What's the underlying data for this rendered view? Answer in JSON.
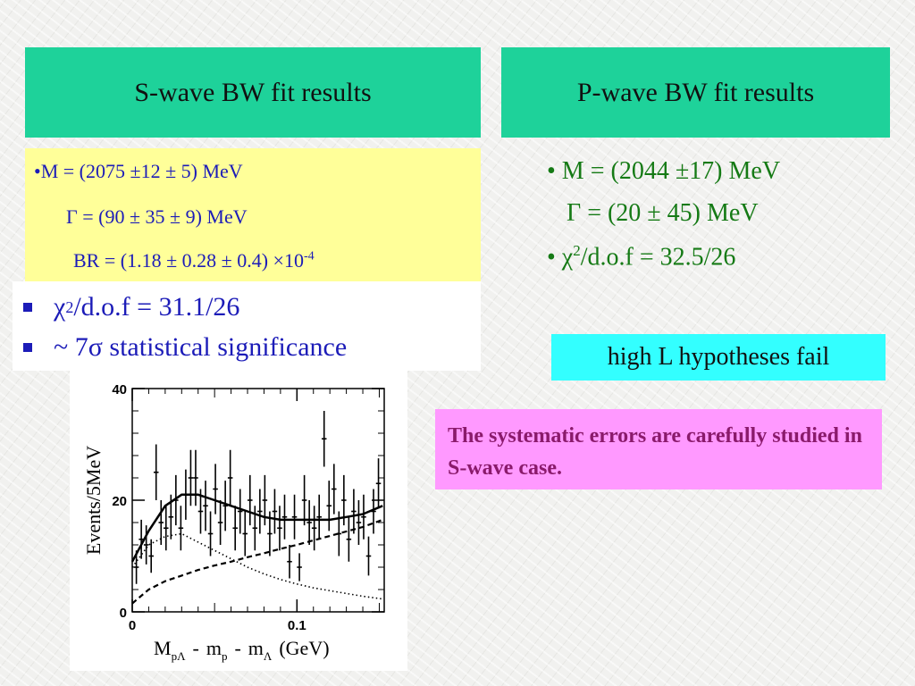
{
  "left_header": "S-wave BW fit results",
  "right_header": "P-wave BW fit results",
  "s_wave": {
    "line1": "•M = (2075 ±12 ± 5) MeV",
    "line2": "Γ = (90 ± 35 ±  9) MeV",
    "line3": "BR = (1.18 ± 0.28 ± 0.4) ×10",
    "line3_exp": "-4",
    "chi_sym": "χ",
    "chi_sup": "2",
    "chi_rest": "/d.o.f = 31.1/26",
    "signif": "~ 7σ statistical significance"
  },
  "p_wave": {
    "line1": "• M = (2044 ±17) MeV",
    "line2": "Γ = (20 ± 45) MeV",
    "chi_prefix": "• χ",
    "chi_sup": "2",
    "chi_rest": "/d.o.f = 32.5/26"
  },
  "high_l": "high L hypotheses fail",
  "systematic_note": "The systematic errors are carefully studied in S-wave case.",
  "chart_data": {
    "type": "scatter",
    "ylabel": "Events/5MeV",
    "xlabel_parts": {
      "M": "M",
      "m": "m",
      "sub_pl": "pΛ",
      "sub_p": "p",
      "sub_l": "Λ",
      "dash": "-",
      "unit": "(GeV)"
    },
    "xlim": [
      0,
      0.153
    ],
    "ylim": [
      0,
      40
    ],
    "x_ticks": [
      {
        "v": 0,
        "label": "0"
      },
      {
        "v": 0.1,
        "label": "0.1"
      }
    ],
    "y_ticks": [
      {
        "v": 0,
        "label": "0"
      },
      {
        "v": 20,
        "label": "20"
      },
      {
        "v": 40,
        "label": "40"
      }
    ],
    "points": [
      {
        "x": 0.0025,
        "y": 8,
        "err": 3
      },
      {
        "x": 0.0055,
        "y": 13,
        "err": 3.5
      },
      {
        "x": 0.0085,
        "y": 12,
        "err": 3.5
      },
      {
        "x": 0.0115,
        "y": 10,
        "err": 3
      },
      {
        "x": 0.0145,
        "y": 25,
        "err": 5
      },
      {
        "x": 0.0175,
        "y": 16,
        "err": 4
      },
      {
        "x": 0.0205,
        "y": 15,
        "err": 4
      },
      {
        "x": 0.0235,
        "y": 17,
        "err": 4
      },
      {
        "x": 0.0265,
        "y": 20,
        "err": 4.5
      },
      {
        "x": 0.0295,
        "y": 15,
        "err": 4
      },
      {
        "x": 0.0325,
        "y": 21,
        "err": 4.5
      },
      {
        "x": 0.0355,
        "y": 24,
        "err": 5
      },
      {
        "x": 0.0385,
        "y": 24,
        "err": 5
      },
      {
        "x": 0.0415,
        "y": 18,
        "err": 4
      },
      {
        "x": 0.0445,
        "y": 19,
        "err": 4.5
      },
      {
        "x": 0.0475,
        "y": 14,
        "err": 4
      },
      {
        "x": 0.0505,
        "y": 22,
        "err": 4.5
      },
      {
        "x": 0.0535,
        "y": 16,
        "err": 4
      },
      {
        "x": 0.0565,
        "y": 19,
        "err": 4.5
      },
      {
        "x": 0.0595,
        "y": 24,
        "err": 5
      },
      {
        "x": 0.0625,
        "y": 15,
        "err": 4
      },
      {
        "x": 0.0655,
        "y": 18,
        "err": 4
      },
      {
        "x": 0.0685,
        "y": 14,
        "err": 4
      },
      {
        "x": 0.0715,
        "y": 20,
        "err": 4.5
      },
      {
        "x": 0.0745,
        "y": 15,
        "err": 4
      },
      {
        "x": 0.0775,
        "y": 18,
        "err": 4
      },
      {
        "x": 0.0805,
        "y": 20,
        "err": 4.5
      },
      {
        "x": 0.0835,
        "y": 14,
        "err": 4
      },
      {
        "x": 0.0865,
        "y": 18,
        "err": 4
      },
      {
        "x": 0.0895,
        "y": 15,
        "err": 4
      },
      {
        "x": 0.0925,
        "y": 17,
        "err": 4
      },
      {
        "x": 0.0955,
        "y": 9,
        "err": 3
      },
      {
        "x": 0.0985,
        "y": 17,
        "err": 4
      },
      {
        "x": 0.1015,
        "y": 8,
        "err": 2.5
      },
      {
        "x": 0.1045,
        "y": 20,
        "err": 4.5
      },
      {
        "x": 0.1075,
        "y": 16,
        "err": 4
      },
      {
        "x": 0.1105,
        "y": 15,
        "err": 4
      },
      {
        "x": 0.1135,
        "y": 17,
        "err": 4
      },
      {
        "x": 0.1165,
        "y": 31,
        "err": 5
      },
      {
        "x": 0.1195,
        "y": 19,
        "err": 4.5
      },
      {
        "x": 0.1225,
        "y": 22,
        "err": 4.5
      },
      {
        "x": 0.1255,
        "y": 14,
        "err": 4
      },
      {
        "x": 0.1285,
        "y": 20,
        "err": 4.5
      },
      {
        "x": 0.1315,
        "y": 13,
        "err": 4
      },
      {
        "x": 0.1345,
        "y": 18,
        "err": 4
      },
      {
        "x": 0.1375,
        "y": 16,
        "err": 4
      },
      {
        "x": 0.1405,
        "y": 17,
        "err": 4
      },
      {
        "x": 0.1435,
        "y": 10,
        "err": 3.5
      },
      {
        "x": 0.1465,
        "y": 18,
        "err": 4
      },
      {
        "x": 0.1495,
        "y": 23,
        "err": 4.5
      }
    ],
    "curves": [
      {
        "style": "solid",
        "points": [
          [
            0,
            9
          ],
          [
            0.01,
            14.5
          ],
          [
            0.02,
            19
          ],
          [
            0.03,
            21
          ],
          [
            0.04,
            21
          ],
          [
            0.05,
            20
          ],
          [
            0.06,
            19
          ],
          [
            0.07,
            18
          ],
          [
            0.08,
            17
          ],
          [
            0.09,
            16.5
          ],
          [
            0.1,
            16.5
          ],
          [
            0.11,
            16.5
          ],
          [
            0.12,
            16.5
          ],
          [
            0.13,
            17
          ],
          [
            0.14,
            17.5
          ],
          [
            0.152,
            19
          ]
        ]
      },
      {
        "style": "dotted",
        "points": [
          [
            0,
            8
          ],
          [
            0.01,
            12
          ],
          [
            0.02,
            13.5
          ],
          [
            0.03,
            14
          ],
          [
            0.04,
            12.5
          ],
          [
            0.05,
            11
          ],
          [
            0.06,
            9.5
          ],
          [
            0.07,
            8
          ],
          [
            0.08,
            6.8
          ],
          [
            0.09,
            5.8
          ],
          [
            0.1,
            5
          ],
          [
            0.11,
            4.3
          ],
          [
            0.12,
            3.8
          ],
          [
            0.13,
            3.3
          ],
          [
            0.14,
            2.8
          ],
          [
            0.152,
            2.3
          ]
        ]
      },
      {
        "style": "dashed",
        "points": [
          [
            0,
            1.5
          ],
          [
            0.01,
            4
          ],
          [
            0.02,
            5.5
          ],
          [
            0.03,
            6.5
          ],
          [
            0.04,
            7.5
          ],
          [
            0.05,
            8.3
          ],
          [
            0.06,
            9
          ],
          [
            0.07,
            9.8
          ],
          [
            0.08,
            10.5
          ],
          [
            0.09,
            11.3
          ],
          [
            0.1,
            12
          ],
          [
            0.11,
            12.8
          ],
          [
            0.12,
            13.6
          ],
          [
            0.13,
            14.4
          ],
          [
            0.14,
            15.2
          ],
          [
            0.152,
            16.5
          ]
        ]
      }
    ]
  }
}
